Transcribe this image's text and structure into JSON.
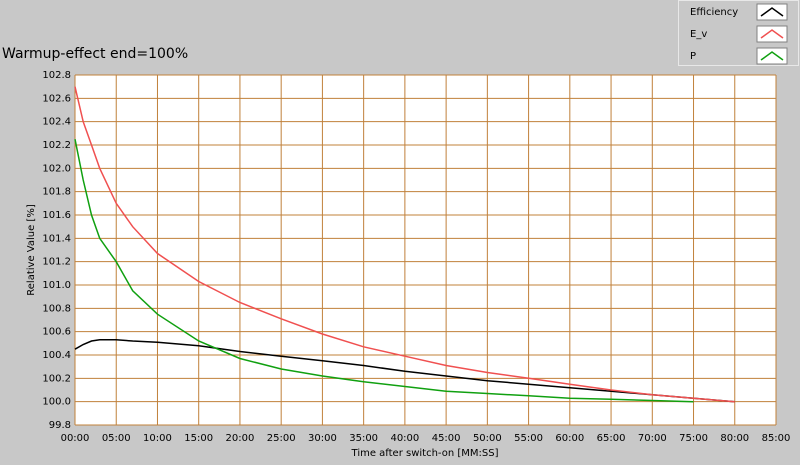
{
  "chart_data": {
    "type": "line",
    "title": "Warmup-effect end=100%",
    "x_label": "Time after switch-on [MM:SS]",
    "y_label": "Relative Value [%]",
    "x": [
      0,
      1,
      2,
      3,
      5,
      7,
      10,
      15,
      20,
      25,
      30,
      35,
      40,
      45,
      50,
      55,
      60,
      65,
      70,
      75,
      80
    ],
    "series": [
      {
        "name": "Efficiency",
        "color": "#000000",
        "values": [
          100.45,
          100.49,
          100.52,
          100.53,
          100.53,
          100.52,
          100.51,
          100.48,
          100.43,
          100.39,
          100.35,
          100.31,
          100.26,
          100.22,
          100.18,
          100.15,
          100.12,
          100.09,
          100.06,
          100.03,
          100.0
        ]
      },
      {
        "name": "E_v",
        "color": "#f05050",
        "values": [
          102.7,
          102.4,
          102.2,
          102.0,
          101.7,
          101.5,
          101.27,
          101.03,
          100.85,
          100.71,
          100.58,
          100.47,
          100.39,
          100.31,
          100.25,
          100.2,
          100.15,
          100.1,
          100.06,
          100.03,
          100.0
        ]
      },
      {
        "name": "P",
        "color": "#10a010",
        "values": [
          102.25,
          101.9,
          101.6,
          101.4,
          101.2,
          100.95,
          100.75,
          100.52,
          100.37,
          100.28,
          100.22,
          100.17,
          100.13,
          100.09,
          100.07,
          100.05,
          100.03,
          100.02,
          100.01,
          100.0,
          null
        ]
      }
    ],
    "xlim": [
      0,
      85
    ],
    "xticks": [
      {
        "value": 0,
        "label": "00:00"
      },
      {
        "value": 5,
        "label": "05:00"
      },
      {
        "value": 10,
        "label": "10:00"
      },
      {
        "value": 15,
        "label": "15:00"
      },
      {
        "value": 20,
        "label": "20:00"
      },
      {
        "value": 25,
        "label": "25:00"
      },
      {
        "value": 30,
        "label": "30:00"
      },
      {
        "value": 35,
        "label": "35:00"
      },
      {
        "value": 40,
        "label": "40:00"
      },
      {
        "value": 45,
        "label": "45:00"
      },
      {
        "value": 50,
        "label": "50:00"
      },
      {
        "value": 55,
        "label": "55:00"
      },
      {
        "value": 60,
        "label": "60:00"
      },
      {
        "value": 65,
        "label": "65:00"
      },
      {
        "value": 70,
        "label": "70:00"
      },
      {
        "value": 75,
        "label": "75:00"
      },
      {
        "value": 80,
        "label": "80:00"
      },
      {
        "value": 85,
        "label": "85:00"
      }
    ],
    "ylim": [
      99.8,
      102.8
    ],
    "yticks": [
      99.8,
      {
        "value": 100,
        "label": "100.0"
      },
      100.2,
      100.4,
      100.6,
      100.8,
      {
        "value": 101,
        "label": "101.0"
      },
      101.2,
      101.4,
      101.6,
      101.8,
      {
        "value": 102,
        "label": "102.0"
      },
      102.2,
      102.4,
      102.6,
      102.8
    ],
    "grid": true,
    "legend": "top-right"
  }
}
